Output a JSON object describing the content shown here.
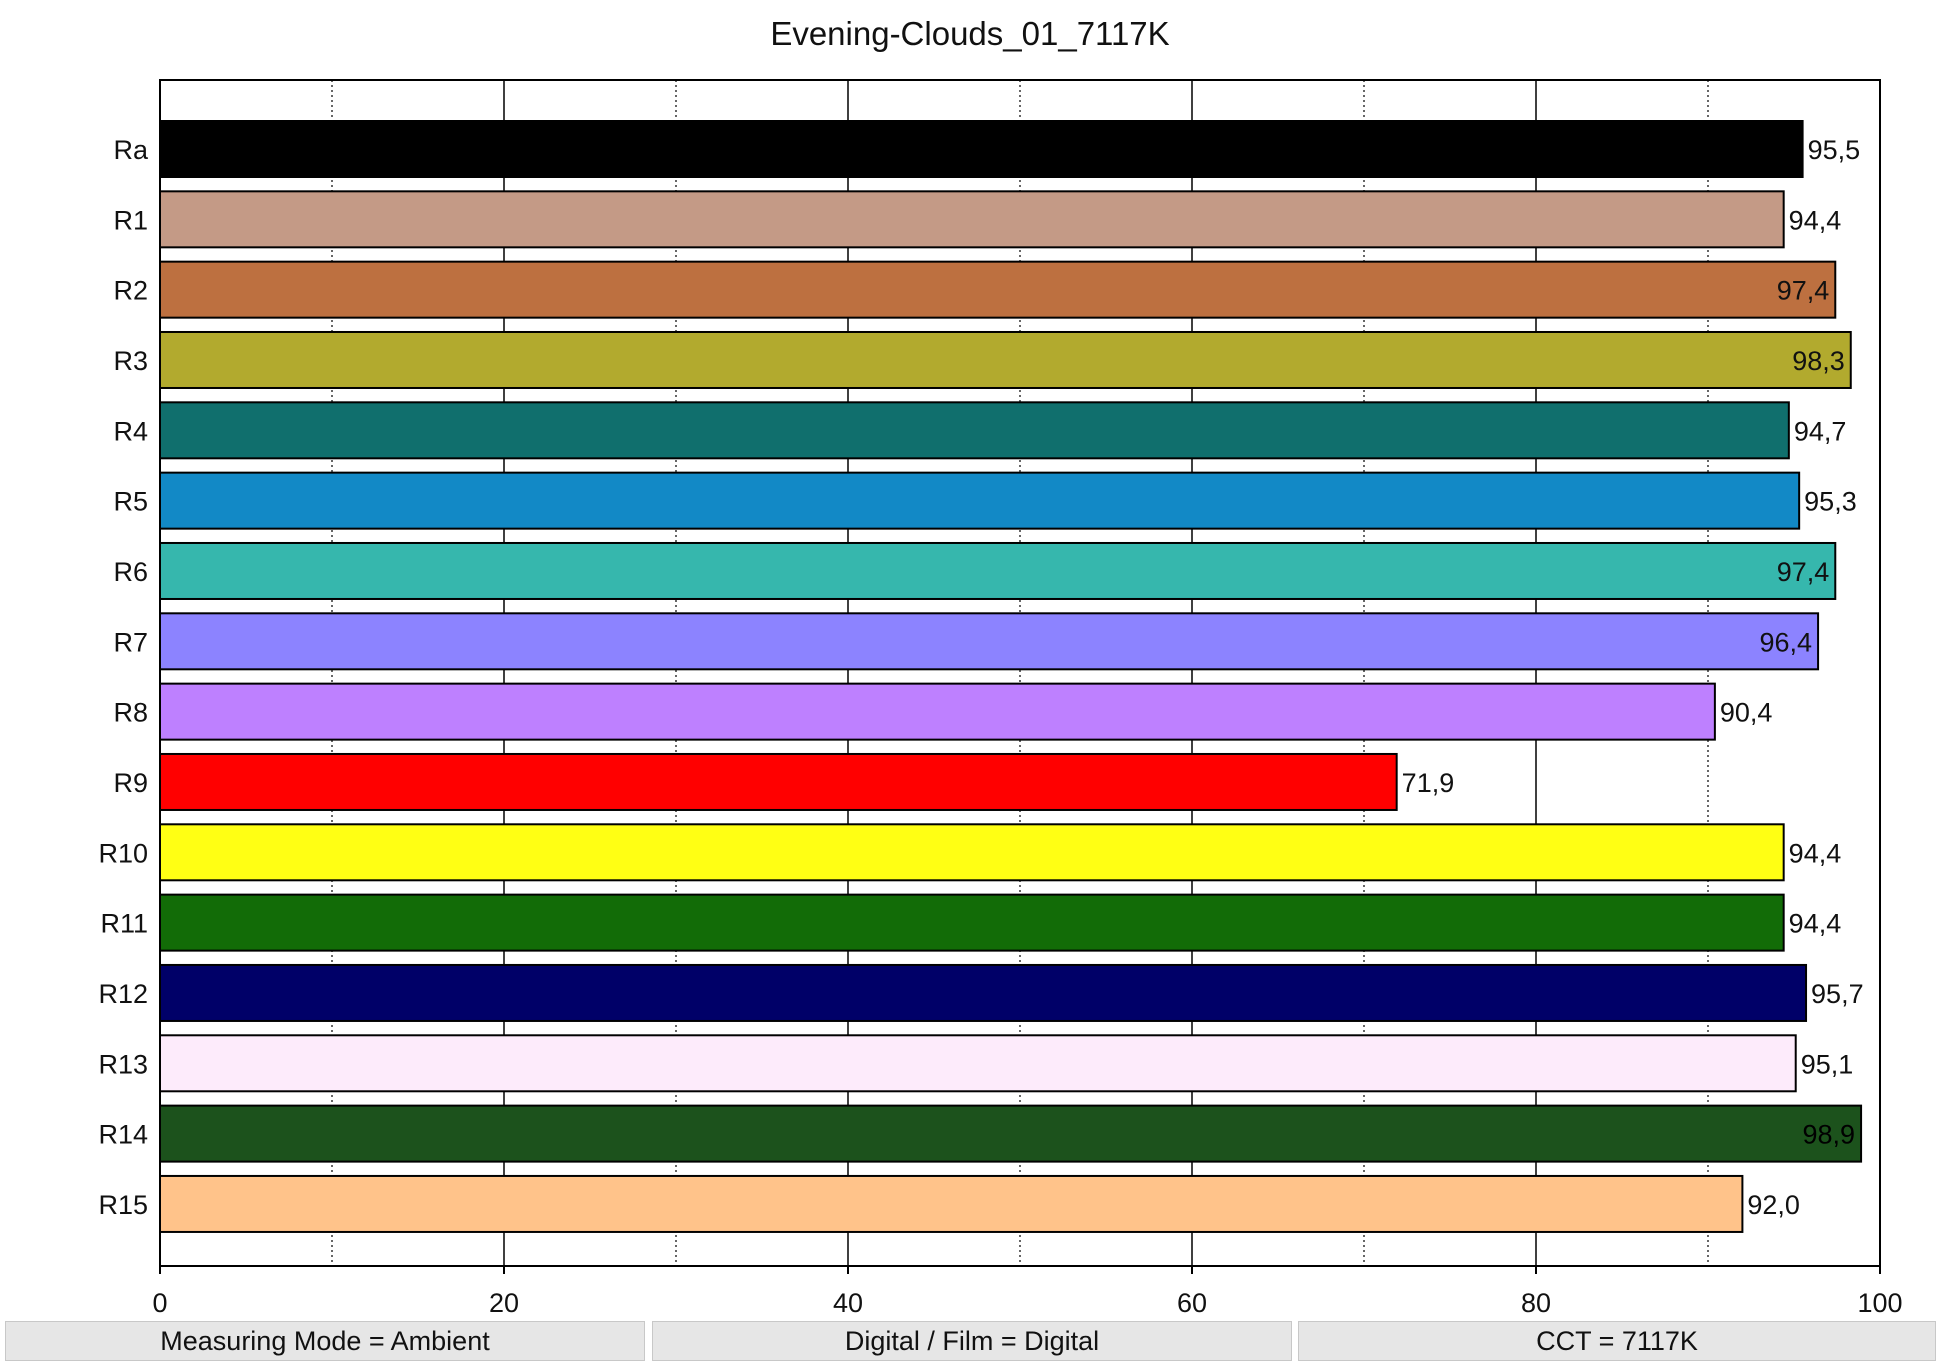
{
  "chart_data": {
    "type": "bar",
    "orientation": "horizontal",
    "title": "Evening-Clouds_01_7117K",
    "xlabel": "",
    "ylabel": "",
    "xlim": [
      0,
      100
    ],
    "x_ticks": [
      0,
      20,
      40,
      60,
      80,
      100
    ],
    "x_tick_labels": [
      "0",
      "20",
      "40",
      "60",
      "80",
      "100"
    ],
    "minor_gridlines": [
      10,
      30,
      50,
      70,
      90
    ],
    "grid": true,
    "categories": [
      "Ra",
      "R1",
      "R2",
      "R3",
      "R4",
      "R5",
      "R6",
      "R7",
      "R8",
      "R9",
      "R10",
      "R11",
      "R12",
      "R13",
      "R14",
      "R15"
    ],
    "values": [
      95.5,
      94.4,
      97.4,
      98.3,
      94.7,
      95.3,
      97.4,
      96.4,
      90.4,
      71.9,
      94.4,
      94.4,
      95.7,
      95.1,
      98.9,
      92.0
    ],
    "value_labels": [
      "95,5",
      "94,4",
      "97,4",
      "98,3",
      "94,7",
      "95,3",
      "97,4",
      "96,4",
      "90,4",
      "71,9",
      "94,4",
      "94,4",
      "95,7",
      "95,1",
      "98,9",
      "92,0"
    ],
    "bar_colors": [
      "#000000",
      "#c49a86",
      "#bd7040",
      "#b2aa2e",
      "#106f6d",
      "#1289c6",
      "#36b7ad",
      "#8c83ff",
      "#be80ff",
      "#ff0000",
      "#ffff14",
      "#126c07",
      "#000068",
      "#fdebfb",
      "#1c521c",
      "#ffc38a"
    ]
  },
  "footer": {
    "measuring_mode": "Measuring Mode = Ambient",
    "digital_film": "Digital / Film = Digital",
    "cct": "CCT = 7117K"
  }
}
